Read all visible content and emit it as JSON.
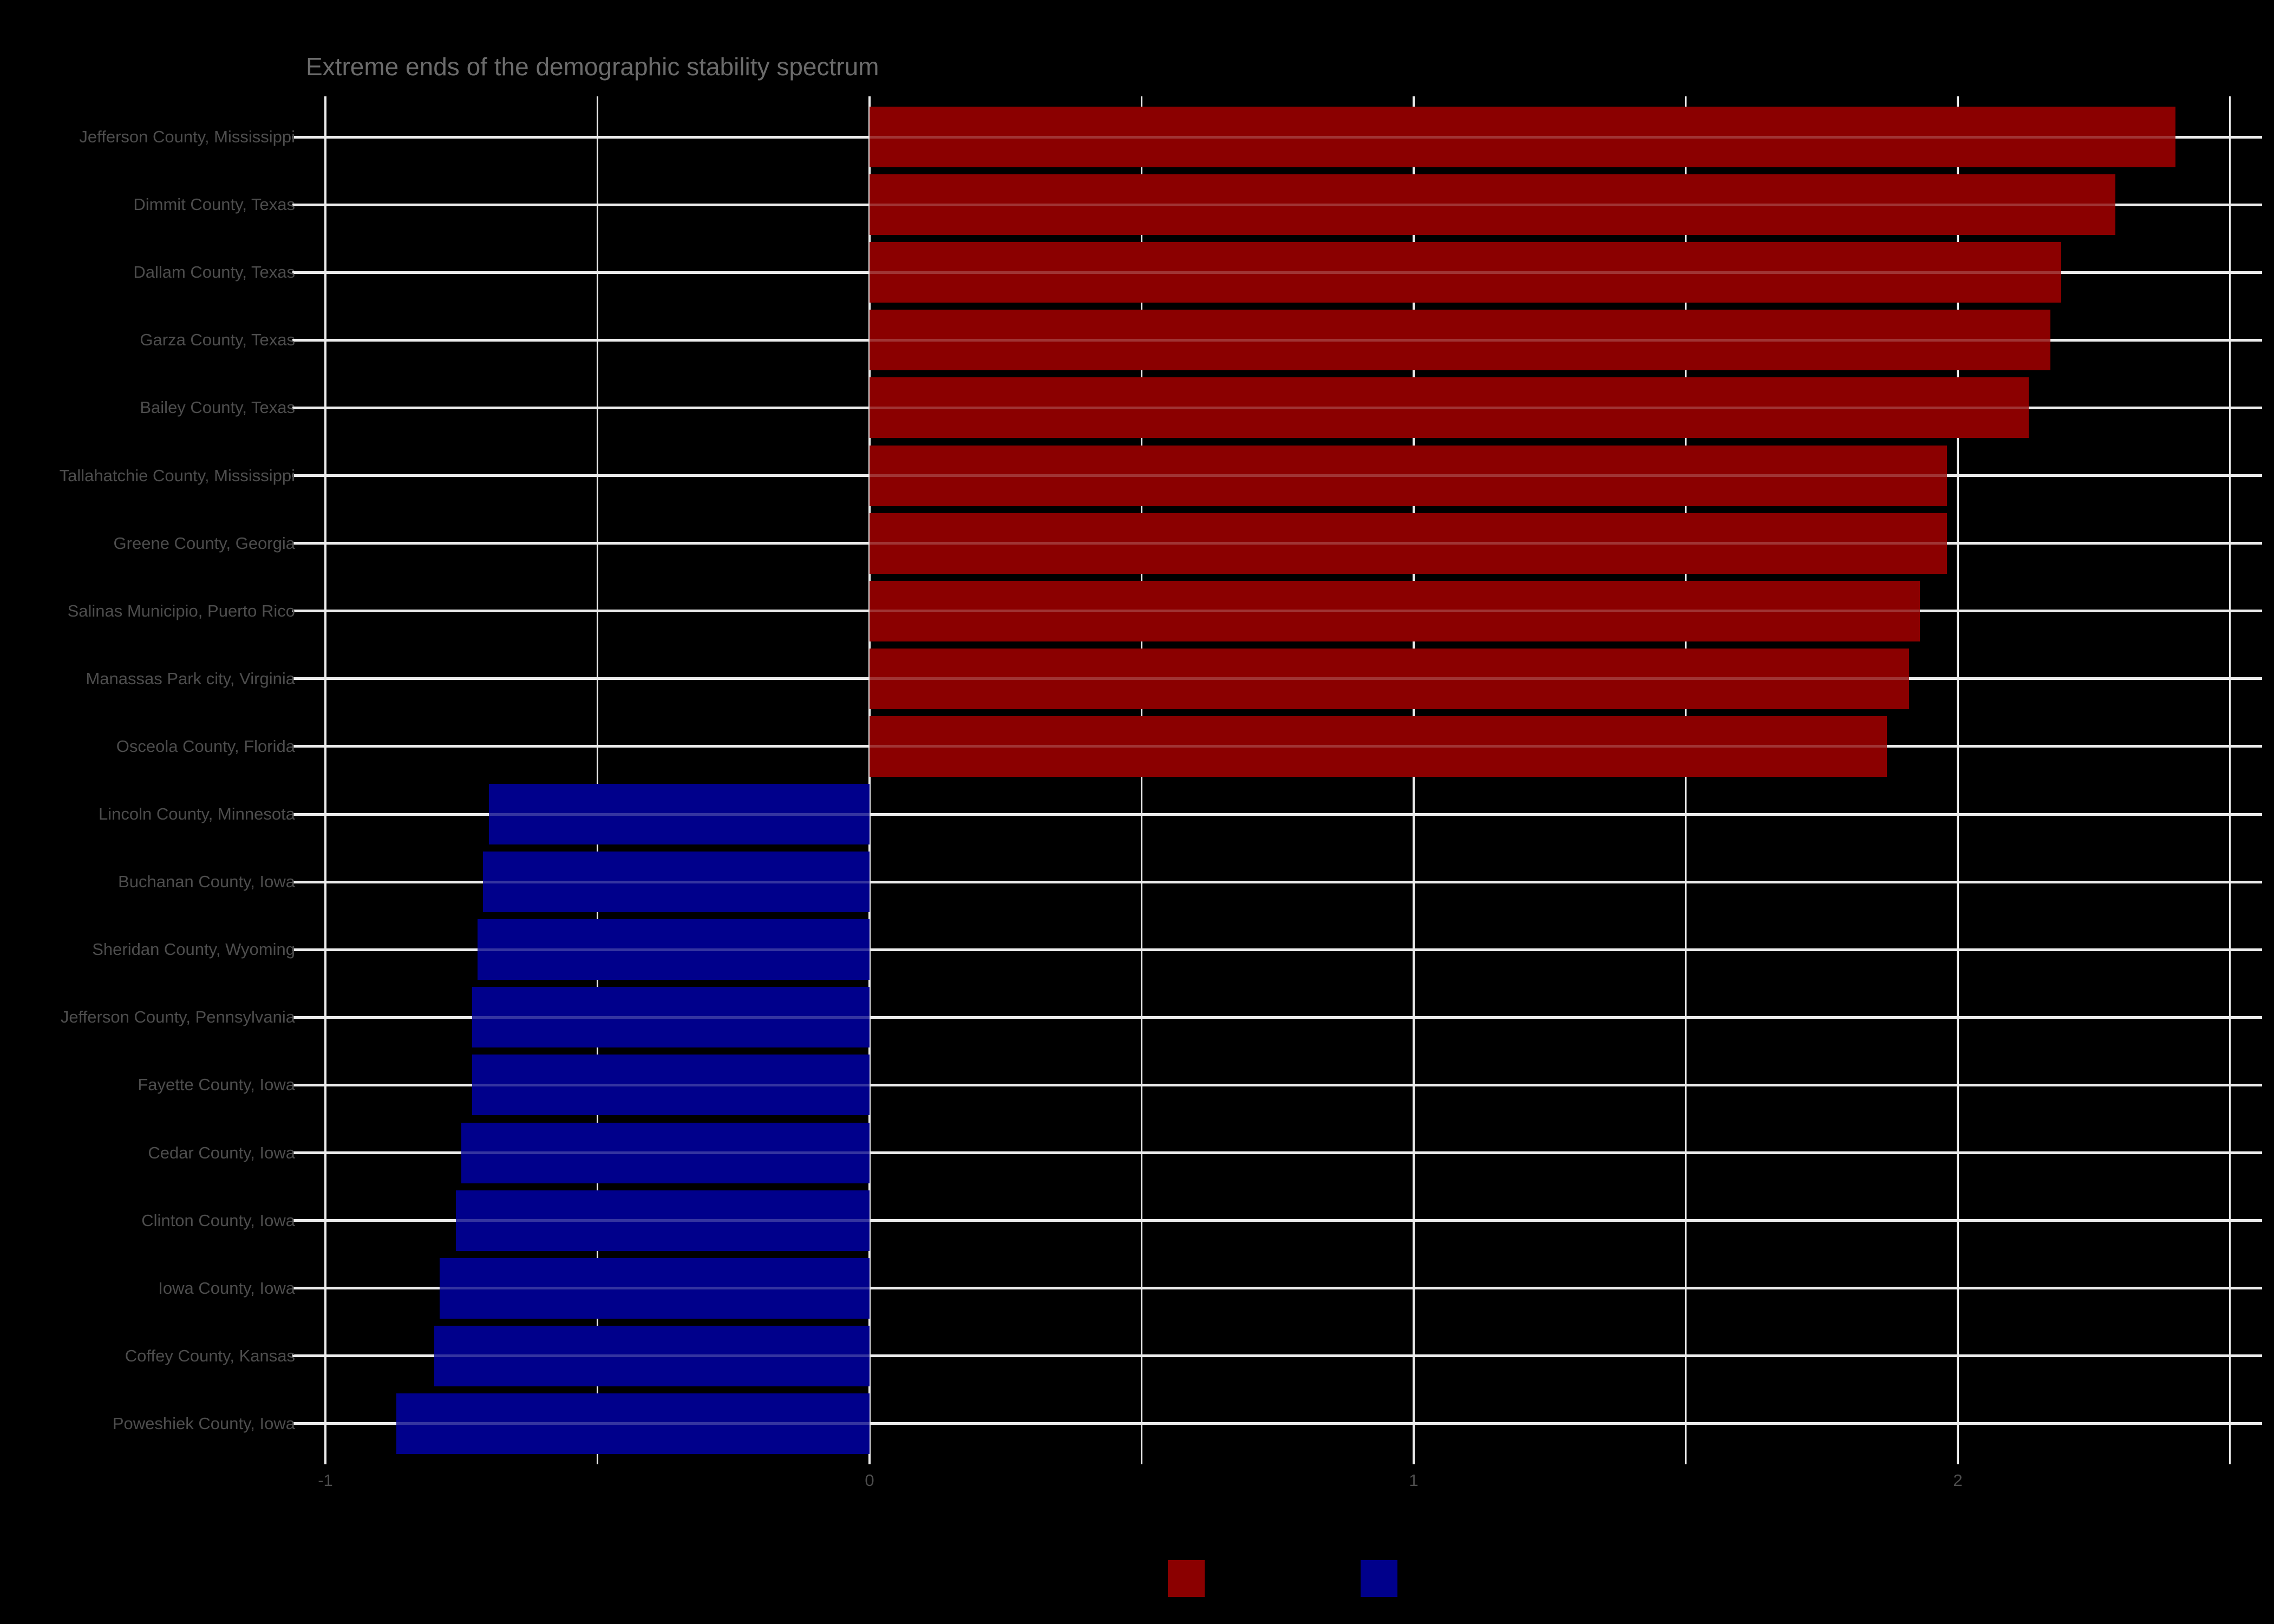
{
  "chart_data": {
    "type": "bar",
    "orientation": "horizontal",
    "title": "Extreme ends of the demographic stability spectrum",
    "xlabel": "",
    "ylabel": "",
    "xlim": [
      -1.0,
      2.5
    ],
    "x_ticks": [
      -1,
      0,
      1,
      2
    ],
    "x_tick_labels": [
      "-1",
      "0",
      "1",
      "2"
    ],
    "minor_gridlines": [
      -0.5,
      0.5,
      1.5,
      2.5
    ],
    "grid": true,
    "legend_position": "bottom",
    "legend": [
      {
        "label": "",
        "color": "#8B0000"
      },
      {
        "label": "",
        "color": "#00008B"
      }
    ],
    "categories": [
      "Jefferson County, Mississippi",
      "Dimmit County, Texas",
      "Dallam County, Texas",
      "Garza County, Texas",
      "Bailey County, Texas",
      "Tallahatchie County, Mississippi",
      "Greene County, Georgia",
      "Salinas Municipio, Puerto Rico",
      "Manassas Park city, Virginia",
      "Osceola County, Florida",
      "Lincoln County, Minnesota",
      "Buchanan County, Iowa",
      "Sheridan County, Wyoming",
      "Jefferson County, Pennsylvania",
      "Fayette County, Iowa",
      "Cedar County, Iowa",
      "Clinton County, Iowa",
      "Iowa County, Iowa",
      "Coffey County, Kansas",
      "Poweshiek County, Iowa"
    ],
    "values": [
      2.4,
      2.29,
      2.19,
      2.17,
      2.13,
      1.98,
      1.98,
      1.93,
      1.91,
      1.87,
      -0.7,
      -0.71,
      -0.72,
      -0.73,
      -0.73,
      -0.75,
      -0.76,
      -0.79,
      -0.8,
      -0.87
    ],
    "colors": [
      "#8B0000",
      "#8B0000",
      "#8B0000",
      "#8B0000",
      "#8B0000",
      "#8B0000",
      "#8B0000",
      "#8B0000",
      "#8B0000",
      "#8B0000",
      "#00008B",
      "#00008B",
      "#00008B",
      "#00008B",
      "#00008B",
      "#00008B",
      "#00008B",
      "#00008B",
      "#00008B",
      "#00008B"
    ]
  },
  "colors": {
    "background": "#000000",
    "positive": "#8B0000",
    "negative": "#00008B",
    "grid": "#ebebeb",
    "axis_text": "#4d4d4d",
    "title_text": "#6b6b6b"
  }
}
